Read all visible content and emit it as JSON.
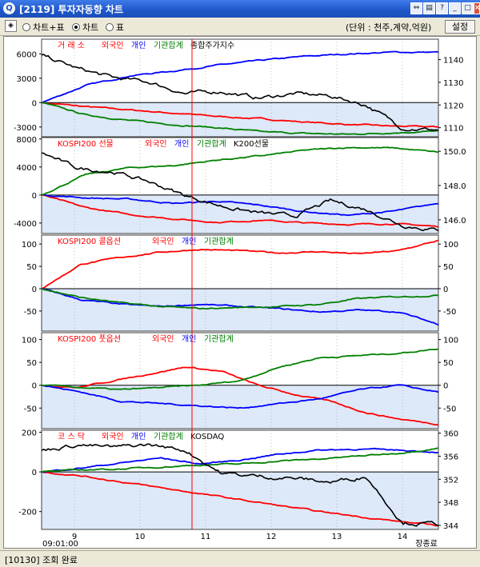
{
  "window": {
    "title": "[2119] 투자자동향 차트",
    "app_icon": "Q"
  },
  "toolbar": {
    "view_options": [
      {
        "label": "차트+표",
        "selected": false
      },
      {
        "label": "차트",
        "selected": true
      },
      {
        "label": "표",
        "selected": false
      }
    ],
    "units_label": "(단위 : 천주,계약,억원)",
    "settings_label": "설정"
  },
  "status": {
    "text": "[10130] 조회 완료"
  },
  "colors": {
    "foreign": "#ff0000",
    "individual": "#0000ff",
    "institution": "#008000",
    "index": "#000000",
    "negative_fill": "#dde8f8",
    "cursor": "#ff0000"
  },
  "chart_data": [
    {
      "type": "line",
      "legend": [
        {
          "name": "거 래 소",
          "color": "#ff0000"
        },
        {
          "name": "외국인",
          "color": "#ff0000"
        },
        {
          "name": "개인",
          "color": "#0000ff"
        },
        {
          "name": "기관합계",
          "color": "#008000"
        },
        {
          "name": "종합주가지수",
          "color": "#000000"
        }
      ],
      "y_left_ticks": [
        "6000",
        "3000",
        "0",
        "-3000"
      ],
      "y_right_ticks": [
        "1140",
        "1130",
        "1120",
        "1110"
      ],
      "ylim_left": [
        -4200,
        7800
      ],
      "ylim_right": [
        1106,
        1149
      ],
      "series": [
        {
          "name": "외국인",
          "axis": "left",
          "color": "#ff0000",
          "values": [
            0,
            -500,
            -900,
            -1300,
            -1700,
            -2000,
            -2400,
            -2700,
            -2900,
            -3000
          ]
        },
        {
          "name": "개인",
          "axis": "left",
          "color": "#0000ff",
          "values": [
            0,
            2100,
            3300,
            3900,
            4600,
            5200,
            5700,
            6000,
            6200,
            6200
          ]
        },
        {
          "name": "기관합계",
          "axis": "left",
          "color": "#008000",
          "values": [
            0,
            -1500,
            -2200,
            -2700,
            -3100,
            -3600,
            -3800,
            -3900,
            -3700,
            -3500
          ]
        },
        {
          "name": "종합주가지수",
          "axis": "right",
          "color": "#000000",
          "values": [
            1142,
            1136,
            1132,
            1130,
            1125,
            1126,
            1123,
            1125,
            1124,
            1120,
            1110,
            1109
          ]
        }
      ]
    },
    {
      "type": "line",
      "legend": [
        {
          "name": "KOSPI200 선물",
          "color": "#ff0000"
        },
        {
          "name": "외국인",
          "color": "#ff0000"
        },
        {
          "name": "개인",
          "color": "#0000ff"
        },
        {
          "name": "기관합계",
          "color": "#008000"
        },
        {
          "name": "K200선물",
          "color": "#000000"
        }
      ],
      "y_left_ticks": [
        "8000",
        "4000",
        "0",
        "-4000"
      ],
      "y_right_ticks": [
        "150.0",
        "148.0",
        "146.0"
      ],
      "ylim_left": [
        -5500,
        8200
      ],
      "ylim_right": [
        145.2,
        150.8
      ],
      "series": [
        {
          "name": "외국인",
          "axis": "left",
          "color": "#ff0000",
          "values": [
            0,
            -1800,
            -2800,
            -3400,
            -3900,
            -3600,
            -4000,
            -4200,
            -4100,
            -4500
          ]
        },
        {
          "name": "개인",
          "axis": "left",
          "color": "#0000ff",
          "values": [
            0,
            -400,
            -600,
            -1200,
            -900,
            -1500,
            -2400,
            -2900,
            -2300,
            -1200
          ]
        },
        {
          "name": "기관합계",
          "axis": "left",
          "color": "#008000",
          "values": [
            0,
            2900,
            3900,
            4200,
            5000,
            5600,
            6400,
            6800,
            6700,
            6100
          ]
        },
        {
          "name": "K200선물",
          "axis": "right",
          "color": "#000000",
          "values": [
            149.9,
            149.0,
            148.8,
            148.2,
            147.4,
            146.8,
            146.4,
            146.2,
            147.1,
            146.6,
            145.7,
            145.4
          ]
        }
      ]
    },
    {
      "type": "line",
      "legend": [
        {
          "name": "KOSPI200 콜옵션",
          "color": "#ff0000"
        },
        {
          "name": "외국인",
          "color": "#ff0000"
        },
        {
          "name": "개인",
          "color": "#0000ff"
        },
        {
          "name": "기관합계",
          "color": "#008000"
        }
      ],
      "y_left_ticks": [
        "100",
        "50",
        "0",
        "-50"
      ],
      "y_right_ticks": [
        "100",
        "50",
        "0",
        "-50"
      ],
      "ylim_left": [
        -95,
        120
      ],
      "ylim_right": [
        -95,
        120
      ],
      "series": [
        {
          "name": "외국인",
          "axis": "left",
          "color": "#ff0000",
          "values": [
            0,
            55,
            70,
            82,
            88,
            85,
            80,
            83,
            78,
            85,
            108
          ]
        },
        {
          "name": "개인",
          "axis": "left",
          "color": "#0000ff",
          "values": [
            0,
            -25,
            -35,
            -40,
            -35,
            -40,
            -45,
            -52,
            -48,
            -52,
            -80
          ]
        },
        {
          "name": "기관합계",
          "axis": "left",
          "color": "#008000",
          "values": [
            0,
            -20,
            -32,
            -40,
            -45,
            -42,
            -40,
            -35,
            -22,
            -18,
            -15
          ]
        }
      ]
    },
    {
      "type": "line",
      "legend": [
        {
          "name": "KOSPI200 풋옵션",
          "color": "#ff0000"
        },
        {
          "name": "외국인",
          "color": "#ff0000"
        },
        {
          "name": "개인",
          "color": "#0000ff"
        },
        {
          "name": "기관합계",
          "color": "#008000"
        }
      ],
      "y_left_ticks": [
        "100",
        "50",
        "0",
        "-50"
      ],
      "y_right_ticks": [
        "100",
        "50",
        "0",
        "-50"
      ],
      "ylim_left": [
        -95,
        115
      ],
      "ylim_right": [
        -95,
        115
      ],
      "series": [
        {
          "name": "외국인",
          "axis": "left",
          "color": "#ff0000",
          "values": [
            0,
            -5,
            10,
            25,
            40,
            30,
            0,
            -20,
            -35,
            -60,
            -75,
            -85
          ]
        },
        {
          "name": "개인",
          "axis": "left",
          "color": "#0000ff",
          "values": [
            0,
            -15,
            -35,
            -40,
            -45,
            -50,
            -40,
            -30,
            -10,
            0,
            -15
          ]
        },
        {
          "name": "기관합계",
          "axis": "left",
          "color": "#008000",
          "values": [
            0,
            -5,
            -10,
            -5,
            0,
            10,
            40,
            60,
            65,
            70,
            80
          ]
        }
      ]
    },
    {
      "type": "line",
      "legend": [
        {
          "name": "코 스 닥",
          "color": "#ff0000"
        },
        {
          "name": "외국인",
          "color": "#ff0000"
        },
        {
          "name": "개인",
          "color": "#0000ff"
        },
        {
          "name": "기관합계",
          "color": "#008000"
        },
        {
          "name": "KOSDAQ",
          "color": "#000000"
        }
      ],
      "y_left_ticks": [
        "200",
        "0",
        "-200"
      ],
      "y_right_ticks": [
        "360",
        "356",
        "352",
        "348",
        "344"
      ],
      "ylim_left": [
        -290,
        210
      ],
      "ylim_right": [
        343.3,
        360.5
      ],
      "x_ticks": [
        "9",
        "10",
        "11",
        "12",
        "13",
        "14"
      ],
      "x_time_label": "09:01:00",
      "x_end_label": "장종료",
      "series": [
        {
          "name": "외국인",
          "axis": "left",
          "color": "#ff0000",
          "values": [
            0,
            -20,
            -50,
            -80,
            -110,
            -140,
            -170,
            -200,
            -225,
            -250,
            -270
          ]
        },
        {
          "name": "개인",
          "axis": "left",
          "color": "#0000ff",
          "values": [
            0,
            20,
            45,
            70,
            40,
            60,
            90,
            110,
            115,
            110,
            100
          ]
        },
        {
          "name": "기관합계",
          "axis": "left",
          "color": "#008000",
          "values": [
            0,
            10,
            15,
            25,
            35,
            40,
            55,
            65,
            80,
            95,
            120
          ]
        },
        {
          "name": "KOSDAQ",
          "axis": "right",
          "color": "#000000",
          "values": [
            357,
            358,
            357.5,
            358,
            357,
            353,
            352.5,
            352.2,
            351.5,
            352.5,
            344.5,
            344.2
          ]
        }
      ]
    }
  ]
}
